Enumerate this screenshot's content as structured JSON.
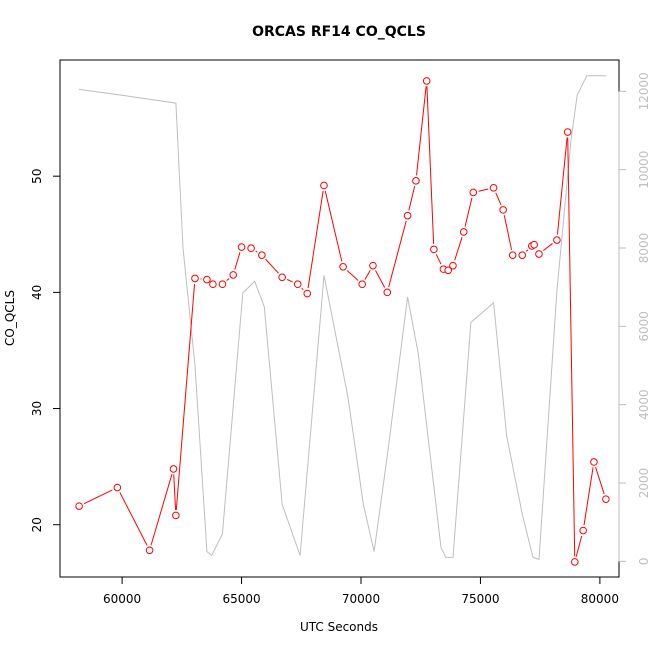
{
  "chart_data": {
    "type": "line",
    "title": "ORCAS RF14 CO_QCLS",
    "xlabel": "UTC Seconds",
    "ylabel": "CO_QCLS",
    "xlim": [
      57400,
      80800
    ],
    "ylim": [
      15.5,
      60.0
    ],
    "y2lim": [
      -400,
      12800
    ],
    "x_ticks": [
      60000,
      65000,
      70000,
      75000,
      80000
    ],
    "y_ticks": [
      20,
      30,
      40,
      50
    ],
    "y2_ticks": [
      0,
      2000,
      4000,
      6000,
      8000,
      10000,
      12000
    ],
    "grid": false,
    "series": [
      {
        "role": "primary",
        "color": "#ff0000",
        "marker": "open-circle",
        "x": [
          58200,
          59800,
          61150,
          62150,
          62250,
          63050,
          63550,
          63800,
          64200,
          64650,
          65000,
          65400,
          65850,
          66700,
          67350,
          67750,
          68450,
          69250,
          70050,
          70500,
          71100,
          71950,
          72300,
          72750,
          73050,
          73450,
          73650,
          73850,
          74300,
          74700,
          75550,
          75950,
          76350,
          76750,
          77150,
          77250,
          77450,
          78200,
          78650,
          78950,
          79300,
          79750,
          80250
        ],
        "y": [
          21.6,
          23.2,
          17.8,
          24.8,
          20.8,
          41.2,
          41.1,
          40.7,
          40.7,
          41.5,
          43.9,
          43.8,
          43.2,
          41.3,
          40.7,
          39.9,
          49.2,
          42.2,
          40.7,
          42.3,
          40.0,
          46.6,
          49.6,
          58.2,
          43.7,
          42.0,
          41.9,
          42.3,
          45.2,
          48.6,
          49.0,
          47.1,
          43.2,
          43.2,
          44.0,
          44.1,
          43.3,
          44.5,
          53.8,
          16.8,
          19.5,
          25.4,
          22.2
        ]
      },
      {
        "role": "secondary",
        "color": "#bebebe",
        "x": [
          58200,
          60000,
          62250,
          62550,
          63050,
          63550,
          63750,
          64200,
          65050,
          65550,
          65950,
          66700,
          67450,
          68450,
          69450,
          70100,
          70550,
          71100,
          71950,
          72400,
          73350,
          73550,
          73850,
          74600,
          75550,
          76100,
          76750,
          77200,
          77450,
          78200,
          78800,
          79050,
          79450,
          80250
        ],
        "y": [
          12050,
          11900,
          11700,
          8000,
          5000,
          250,
          150,
          700,
          6850,
          7150,
          6500,
          1450,
          150,
          7300,
          4200,
          1450,
          250,
          2700,
          6750,
          5300,
          350,
          100,
          100,
          6100,
          6600,
          3200,
          1200,
          100,
          50,
          6900,
          10800,
          11900,
          12400,
          12400
        ]
      }
    ]
  }
}
